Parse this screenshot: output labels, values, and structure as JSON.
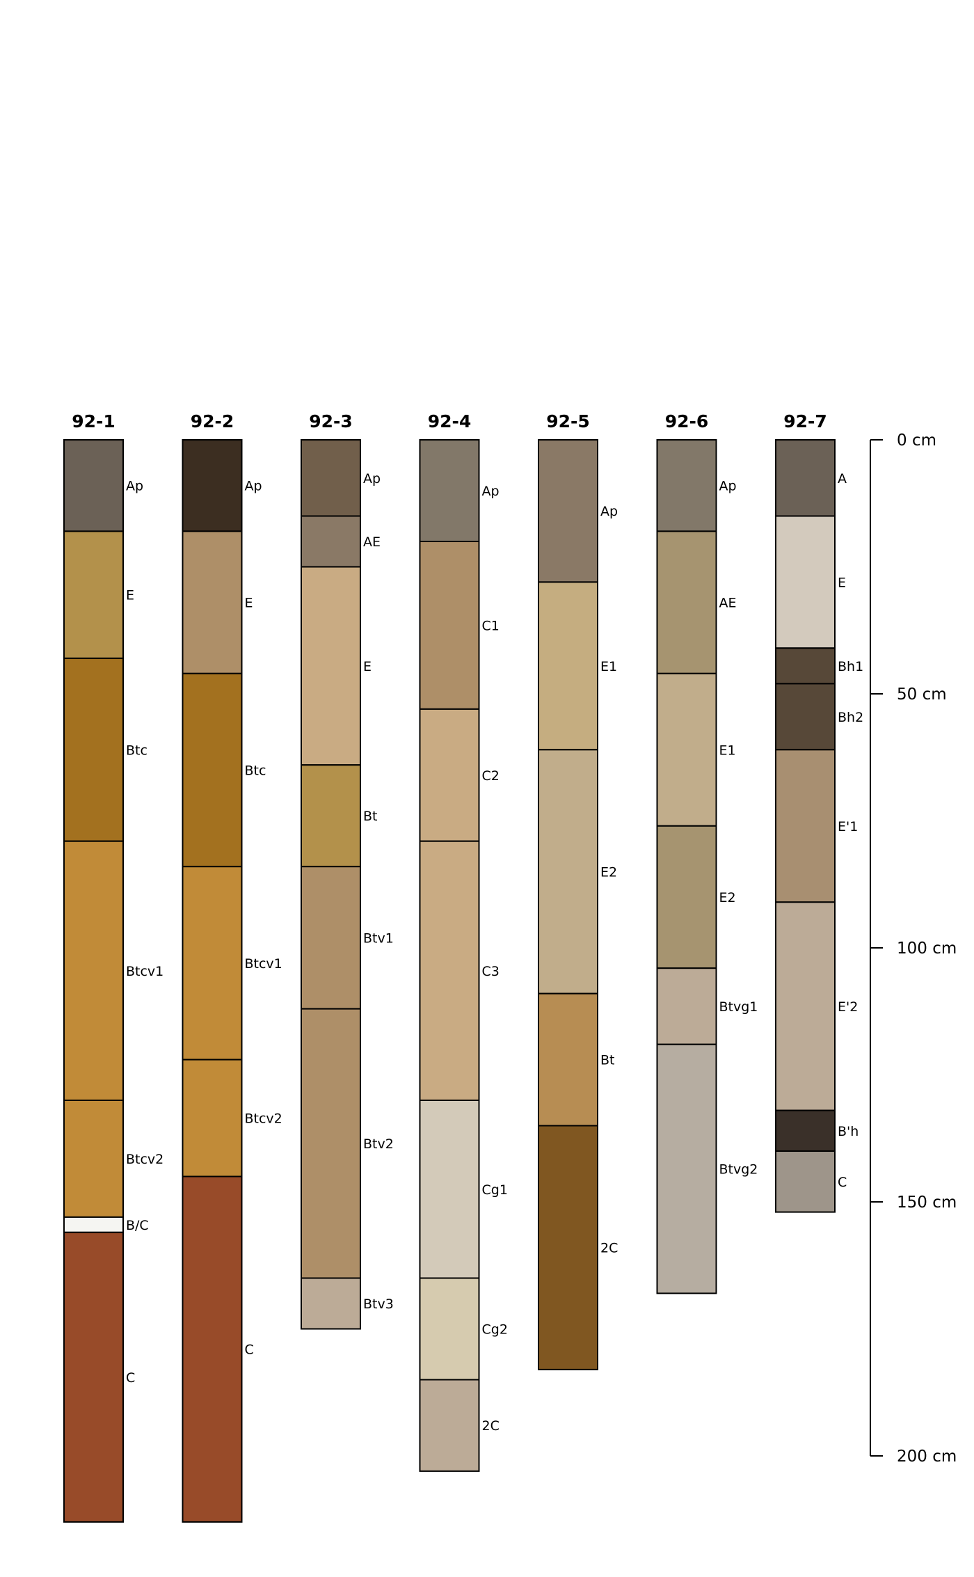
{
  "depth_unit": "cm",
  "depth_scale": {
    "ticks": [
      {
        "depth": 0,
        "label": "0 cm"
      },
      {
        "depth": 50,
        "label": "50 cm"
      },
      {
        "depth": 100,
        "label": "100 cm"
      },
      {
        "depth": 150,
        "label": "150 cm"
      },
      {
        "depth": 200,
        "label": "200 cm"
      }
    ]
  },
  "profiles": [
    {
      "id": "92-1",
      "horizons": [
        {
          "name": "Ap",
          "top": 0,
          "bottom": 18,
          "color": "#6b6156"
        },
        {
          "name": "E",
          "top": 18,
          "bottom": 43,
          "color": "#b3914b"
        },
        {
          "name": "Btc",
          "top": 43,
          "bottom": 79,
          "color": "#a3711f"
        },
        {
          "name": "Btcv1",
          "top": 79,
          "bottom": 130,
          "color": "#c18b38"
        },
        {
          "name": "Btcv2",
          "top": 130,
          "bottom": 153,
          "color": "#c18b38"
        },
        {
          "name": "B/C",
          "top": 153,
          "bottom": 156,
          "color": "#f5f5f2"
        },
        {
          "name": "C",
          "top": 156,
          "bottom": 213,
          "color": "#984b29"
        }
      ]
    },
    {
      "id": "92-2",
      "horizons": [
        {
          "name": "Ap",
          "top": 0,
          "bottom": 18,
          "color": "#3c2e21"
        },
        {
          "name": "E",
          "top": 18,
          "bottom": 46,
          "color": "#ae8f68"
        },
        {
          "name": "Btc",
          "top": 46,
          "bottom": 84,
          "color": "#a3711f"
        },
        {
          "name": "Btcv1",
          "top": 84,
          "bottom": 122,
          "color": "#c18b38"
        },
        {
          "name": "Btcv2",
          "top": 122,
          "bottom": 145,
          "color": "#c18b38"
        },
        {
          "name": "C",
          "top": 145,
          "bottom": 213,
          "color": "#984b29"
        }
      ]
    },
    {
      "id": "92-3",
      "horizons": [
        {
          "name": "Ap",
          "top": 0,
          "bottom": 15,
          "color": "#715f4b"
        },
        {
          "name": "AE",
          "top": 15,
          "bottom": 25,
          "color": "#8a7966"
        },
        {
          "name": "E",
          "top": 25,
          "bottom": 64,
          "color": "#c9ab83"
        },
        {
          "name": "Bt",
          "top": 64,
          "bottom": 84,
          "color": "#b3914b"
        },
        {
          "name": "Btv1",
          "top": 84,
          "bottom": 112,
          "color": "#ae8f68"
        },
        {
          "name": "Btv2",
          "top": 112,
          "bottom": 165,
          "color": "#ae8f68"
        },
        {
          "name": "Btv3",
          "top": 165,
          "bottom": 175,
          "color": "#bcab97"
        }
      ]
    },
    {
      "id": "92-4",
      "horizons": [
        {
          "name": "Ap",
          "top": 0,
          "bottom": 20,
          "color": "#827869"
        },
        {
          "name": "C1",
          "top": 20,
          "bottom": 53,
          "color": "#ae8f68"
        },
        {
          "name": "C2",
          "top": 53,
          "bottom": 79,
          "color": "#c9ab83"
        },
        {
          "name": "C3",
          "top": 79,
          "bottom": 130,
          "color": "#c9ab83"
        },
        {
          "name": "Cg1",
          "top": 130,
          "bottom": 165,
          "color": "#d3cab9"
        },
        {
          "name": "Cg2",
          "top": 165,
          "bottom": 185,
          "color": "#d6cbaf"
        },
        {
          "name": "2C",
          "top": 185,
          "bottom": 203,
          "color": "#bcab97"
        }
      ]
    },
    {
      "id": "92-5",
      "horizons": [
        {
          "name": "Ap",
          "top": 0,
          "bottom": 28,
          "color": "#8a7966"
        },
        {
          "name": "E1",
          "top": 28,
          "bottom": 61,
          "color": "#c5ad80"
        },
        {
          "name": "E2",
          "top": 61,
          "bottom": 109,
          "color": "#c1ad8b"
        },
        {
          "name": "Bt",
          "top": 109,
          "bottom": 135,
          "color": "#b78d53"
        },
        {
          "name": "2C",
          "top": 135,
          "bottom": 183,
          "color": "#805721"
        }
      ]
    },
    {
      "id": "92-6",
      "horizons": [
        {
          "name": "Ap",
          "top": 0,
          "bottom": 18,
          "color": "#827869"
        },
        {
          "name": "AE",
          "top": 18,
          "bottom": 46,
          "color": "#a69470"
        },
        {
          "name": "E1",
          "top": 46,
          "bottom": 76,
          "color": "#c1ad8b"
        },
        {
          "name": "E2",
          "top": 76,
          "bottom": 104,
          "color": "#a69470"
        },
        {
          "name": "Btvg1",
          "top": 104,
          "bottom": 119,
          "color": "#bcab97"
        },
        {
          "name": "Btvg2",
          "top": 119,
          "bottom": 168,
          "color": "#b6ada1"
        }
      ]
    },
    {
      "id": "92-7",
      "horizons": [
        {
          "name": "A",
          "top": 0,
          "bottom": 15,
          "color": "#6b6156"
        },
        {
          "name": "E",
          "top": 15,
          "bottom": 41,
          "color": "#d3cabd"
        },
        {
          "name": "Bh1",
          "top": 41,
          "bottom": 48,
          "color": "#574838"
        },
        {
          "name": "Bh2",
          "top": 48,
          "bottom": 61,
          "color": "#574838"
        },
        {
          "name": "E'1",
          "top": 61,
          "bottom": 91,
          "color": "#a88f71"
        },
        {
          "name": "E'2",
          "top": 91,
          "bottom": 132,
          "color": "#bcab97"
        },
        {
          "name": "B'h",
          "top": 132,
          "bottom": 140,
          "color": "#3a3029"
        },
        {
          "name": "C",
          "top": 140,
          "bottom": 152,
          "color": "#9e958a"
        }
      ]
    }
  ]
}
